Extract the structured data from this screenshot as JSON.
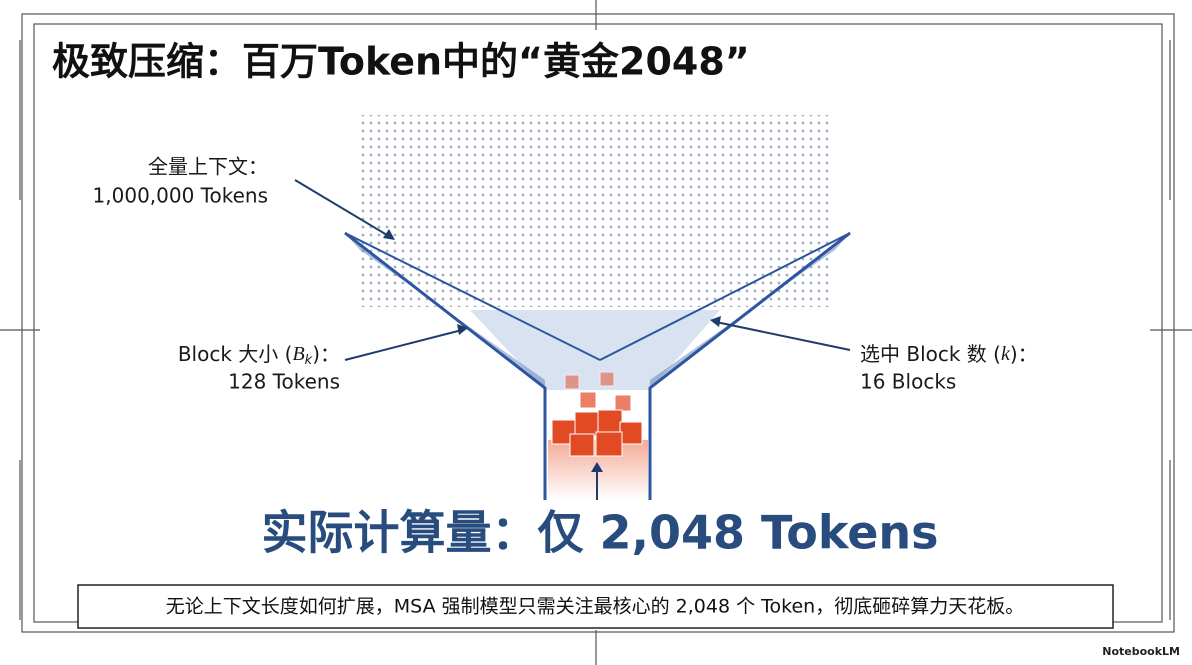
{
  "title": "极致压缩：百万Token中的“黄金2048”",
  "labels": {
    "context": {
      "line1": "全量上下文：",
      "line2": "1,000,000 Tokens"
    },
    "block_size": {
      "prefix": "Block 大小 (",
      "symbol": "B",
      "subscript": "k",
      "suffix": ")：",
      "line2": "128 Tokens"
    },
    "selected": {
      "prefix": "选中 Block 数 (",
      "symbol": "k",
      "suffix": ")：",
      "line2": "16 Blocks"
    }
  },
  "result": "实际计算量：仅 2,048 Tokens",
  "caption": "无论上下文长度如何扩展，MSA 强制模型只需关注最核心的 2,048 个 Token，彻底砸碎算力天花板。",
  "watermark": "NotebookLM"
}
